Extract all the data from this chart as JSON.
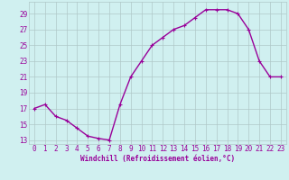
{
  "x": [
    0,
    1,
    2,
    3,
    4,
    5,
    6,
    7,
    8,
    9,
    10,
    11,
    12,
    13,
    14,
    15,
    16,
    17,
    18,
    19,
    20,
    21,
    22,
    23
  ],
  "y": [
    17,
    17.5,
    16,
    15.5,
    14.5,
    13.5,
    13.2,
    13,
    17.5,
    21,
    23,
    25,
    26,
    27,
    27.5,
    28.5,
    29.5,
    29.5,
    29.5,
    29,
    27,
    23,
    21,
    21
  ],
  "line_color": "#990099",
  "marker": "+",
  "bg_color": "#d0f0f0",
  "grid_color": "#b0c8c8",
  "xlabel": "Windchill (Refroidissement éolien,°C)",
  "yticks": [
    13,
    15,
    17,
    19,
    21,
    23,
    25,
    27,
    29
  ],
  "xticks": [
    0,
    1,
    2,
    3,
    4,
    5,
    6,
    7,
    8,
    9,
    10,
    11,
    12,
    13,
    14,
    15,
    16,
    17,
    18,
    19,
    20,
    21,
    22,
    23
  ],
  "ylim": [
    12.5,
    30.5
  ],
  "xlim": [
    -0.5,
    23.5
  ],
  "xlabel_fontsize": 5.5,
  "tick_fontsize": 5.5,
  "line_width": 1.0,
  "marker_size": 3
}
